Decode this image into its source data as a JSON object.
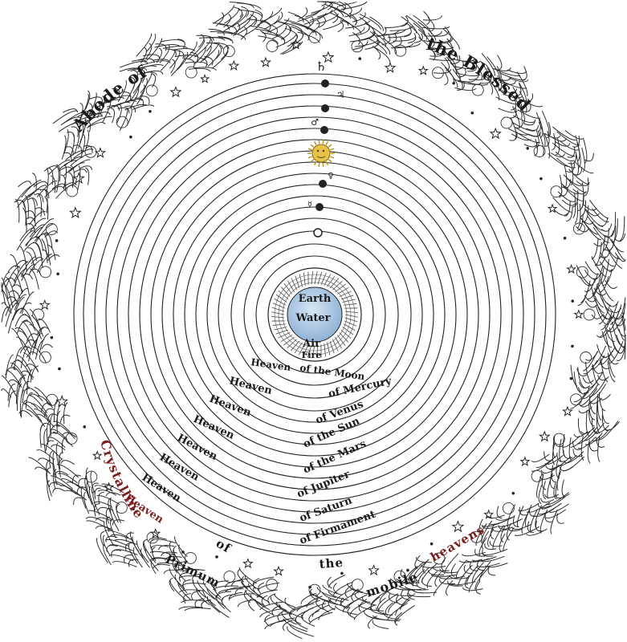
{
  "diagram": {
    "outer_labels": {
      "left": "Abode of",
      "right": "the Blessed"
    },
    "center_labels": {
      "earth": "Earth",
      "water": "Water",
      "air": "Air",
      "fire": "Fire"
    },
    "heaven_labels": [
      {
        "left": "Heaven",
        "right": "of the Moon"
      },
      {
        "left": "Heaven",
        "right": "of Mercury"
      },
      {
        "left": "Heaven",
        "right": "of Venus"
      },
      {
        "left": "Heaven",
        "right": "of the Sun"
      },
      {
        "left": "Heaven",
        "right": "of the Mars"
      },
      {
        "left": "Heaven",
        "right": "of Jupiter"
      },
      {
        "left": "Heaven",
        "right": "of Saturn"
      },
      {
        "left": "Heaven",
        "right": "of Firmament"
      }
    ],
    "bottom_labels": {
      "crystalline": "Crystalline",
      "of": "of",
      "primum": "Primum",
      "the": "the",
      "mobile": "mobile",
      "heavens": "heavens"
    },
    "planet_symbols": [
      "♄",
      "♃",
      "♂",
      "♀",
      "☿"
    ],
    "colors": {
      "ink": "#1a1a1a",
      "earth_blue": "#a9c7e6",
      "sun_yellow": "#e8c34a",
      "label_red": "#7a1f1f"
    }
  }
}
